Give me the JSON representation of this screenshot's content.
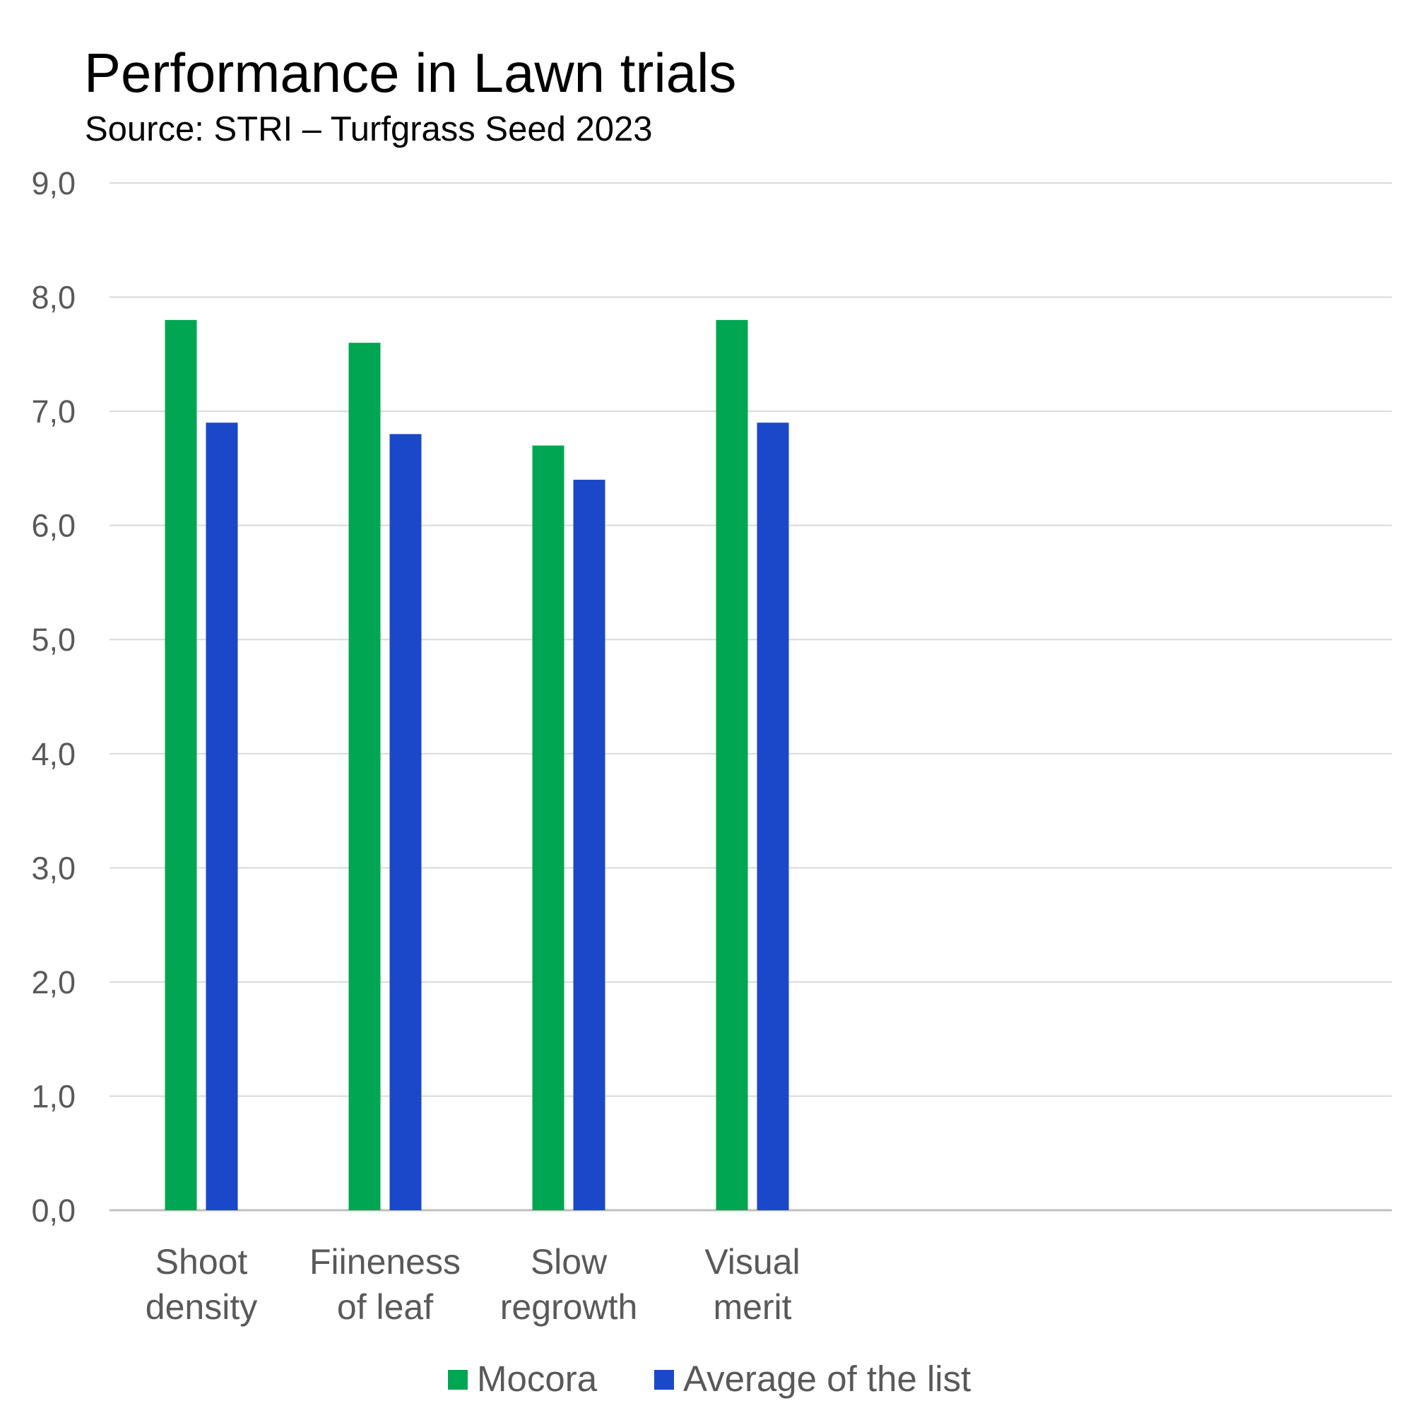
{
  "chart_data": {
    "type": "bar",
    "title": "Performance in Lawn trials",
    "subtitle": "Source: STRI – Turfgrass Seed 2023",
    "categories": [
      [
        "Shoot",
        "density"
      ],
      [
        "Fiineness",
        "of leaf"
      ],
      [
        "Slow",
        "regrowth"
      ],
      [
        "Visual",
        "merit"
      ]
    ],
    "series": [
      {
        "name": "Mocora",
        "color": "#00a651",
        "values": [
          7.8,
          7.6,
          6.7,
          7.8
        ]
      },
      {
        "name": "Average of the list",
        "color": "#1a48c8",
        "values": [
          6.9,
          6.8,
          6.4,
          6.9
        ]
      }
    ],
    "ylim": [
      0,
      9
    ],
    "yticks": [
      "0,0",
      "1,0",
      "2,0",
      "3,0",
      "4,0",
      "5,0",
      "6,0",
      "7,0",
      "8,0",
      "9,0"
    ],
    "grid": true,
    "legend": "bottom"
  }
}
